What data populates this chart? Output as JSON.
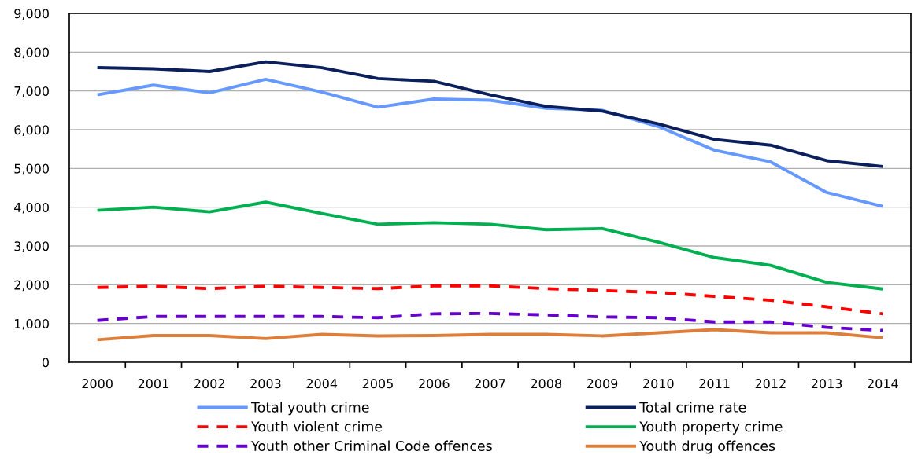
{
  "chart_data": {
    "type": "line",
    "categories": [
      "2000",
      "2001",
      "2002",
      "2003",
      "2004",
      "2005",
      "2006",
      "2007",
      "2008",
      "2009",
      "2010",
      "2011",
      "2012",
      "2013",
      "2014"
    ],
    "series": [
      {
        "name": "Total youth crime",
        "color": "#6699ff",
        "line_style": "solid",
        "values": [
          6900,
          7150,
          6950,
          7300,
          6970,
          6580,
          6790,
          6760,
          6550,
          6500,
          6080,
          5470,
          5170,
          4380,
          4020
        ]
      },
      {
        "name": "Total crime rate",
        "color": "#0a1f5c",
        "line_style": "solid",
        "values": [
          7600,
          7570,
          7500,
          7750,
          7600,
          7320,
          7250,
          6900,
          6600,
          6480,
          6150,
          5750,
          5600,
          5200,
          5050
        ]
      },
      {
        "name": "Youth violent crime",
        "color": "#ff0000",
        "line_style": "dashed",
        "values": [
          1930,
          1960,
          1900,
          1960,
          1930,
          1900,
          1970,
          1970,
          1900,
          1850,
          1800,
          1700,
          1600,
          1430,
          1250
        ]
      },
      {
        "name": "Youth property crime",
        "color": "#00b050",
        "line_style": "solid",
        "values": [
          3920,
          4000,
          3880,
          4130,
          3840,
          3560,
          3600,
          3560,
          3420,
          3450,
          3100,
          2700,
          2500,
          2060,
          1890
        ]
      },
      {
        "name": "Youth other Criminal Code offences",
        "color": "#6600cc",
        "line_style": "dashed",
        "values": [
          1080,
          1180,
          1180,
          1180,
          1180,
          1150,
          1250,
          1260,
          1220,
          1170,
          1150,
          1040,
          1040,
          900,
          820
        ]
      },
      {
        "name": "Youth drug offences",
        "color": "#dd7f3a",
        "line_style": "solid",
        "values": [
          580,
          690,
          690,
          610,
          720,
          680,
          690,
          720,
          720,
          680,
          760,
          840,
          760,
          760,
          630
        ]
      }
    ],
    "ylim": [
      0,
      9000
    ],
    "yticks": [
      0,
      {
        "value": 1000,
        "label": "1,000"
      },
      {
        "value": 2000,
        "label": "2,000"
      },
      {
        "value": 3000,
        "label": "3,000"
      },
      {
        "value": 4000,
        "label": "4,000"
      },
      {
        "value": 5000,
        "label": "5,000"
      },
      {
        "value": 6000,
        "label": "6,000"
      },
      {
        "value": 7000,
        "label": "7,000"
      },
      {
        "value": 8000,
        "label": "8,000"
      },
      {
        "value": 9000,
        "label": "9,000"
      }
    ],
    "grid": "y",
    "legend": "bottom",
    "marker": "none"
  }
}
